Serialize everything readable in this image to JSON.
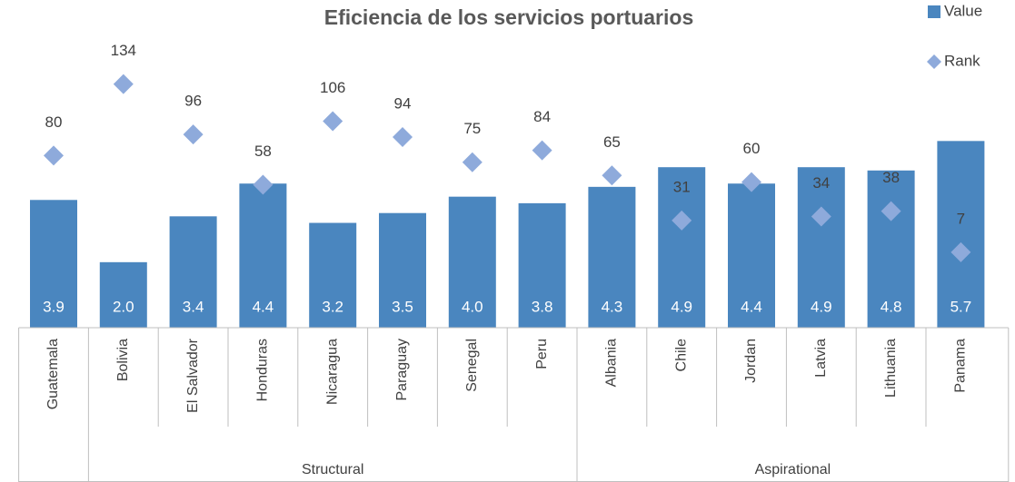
{
  "chart_data": {
    "type": "bar",
    "title": "Eficiencia de los servicios portuarios",
    "categories": [
      "Guatemala",
      "Bolivia",
      "El Salvador",
      "Honduras",
      "Nicaragua",
      "Paraguay",
      "Senegal",
      "Peru",
      "Albania",
      "Chile",
      "Jordan",
      "Latvia",
      "Lithuania",
      "Panama"
    ],
    "groups": [
      {
        "name": null,
        "count": 1
      },
      {
        "name": "Structural",
        "count": 7
      },
      {
        "name": "Aspirational",
        "count": 6
      }
    ],
    "series": [
      {
        "name": "Value",
        "type": "bar",
        "color": "#4a86bf",
        "values": [
          3.9,
          2.0,
          3.4,
          4.4,
          3.2,
          3.5,
          4.0,
          3.8,
          4.3,
          4.9,
          4.4,
          4.9,
          4.8,
          5.7
        ],
        "value_labels": [
          "3.9",
          "2.0",
          "3.4",
          "4.4",
          "3.2",
          "3.5",
          "4.0",
          "3.8",
          "4.3",
          "4.9",
          "4.4",
          "4.9",
          "4.8",
          "5.7"
        ]
      },
      {
        "name": "Rank",
        "type": "scatter",
        "axis": "y2",
        "color": "#8eaadb",
        "values": [
          80,
          134,
          96,
          58,
          106,
          94,
          75,
          84,
          65,
          31,
          60,
          34,
          38,
          7
        ]
      }
    ],
    "ylim": [
      0,
      9.7
    ],
    "y2lim": [
      -50,
      190
    ],
    "legend": "top-right"
  }
}
